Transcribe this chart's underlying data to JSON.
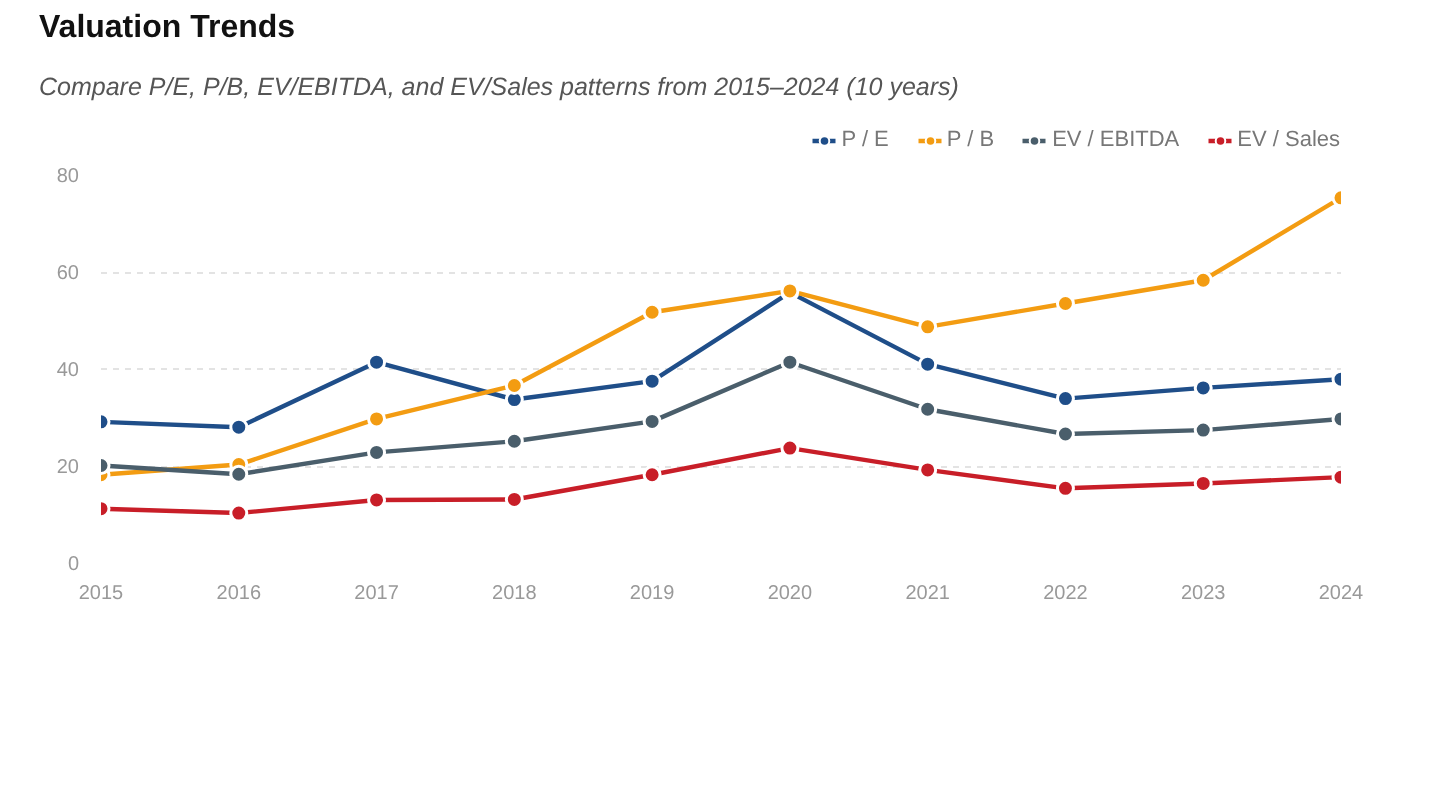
{
  "chart_data": {
    "type": "line",
    "title": "Valuation Trends",
    "subtitle": "Compare P/E, P/B, EV/EBITDA, and EV/Sales patterns from 2015–2024 (10 years)",
    "x": [
      2015,
      2016,
      2017,
      2018,
      2019,
      2020,
      2021,
      2022,
      2023,
      2024
    ],
    "xlim": [
      2015,
      2024
    ],
    "xticks": [
      2015,
      2016,
      2017,
      2018,
      2019,
      2020,
      2021,
      2022,
      2023,
      2024
    ],
    "ylim": [
      0,
      80
    ],
    "yticks": [
      0,
      20,
      40,
      60,
      80
    ],
    "grid": "y",
    "legend": "top right",
    "marker": "circle",
    "line_style": "solid",
    "series": [
      {
        "name": "P / E",
        "color": "#1f4e89",
        "values": [
          29.1,
          28,
          41.4,
          33.7,
          37.5,
          55.8,
          41,
          33.9,
          36.1,
          37.9
        ]
      },
      {
        "name": "P / B",
        "color": "#f39c12",
        "values": [
          18.2,
          20.3,
          29.7,
          36.6,
          51.7,
          56.1,
          48.7,
          53.5,
          58.3,
          75.3
        ]
      },
      {
        "name": "EV / EBITDA",
        "color": "#4a5e6b",
        "values": [
          20.1,
          18.3,
          22.8,
          25.1,
          29.2,
          41.4,
          31.7,
          26.6,
          27.4,
          29.7
        ]
      },
      {
        "name": "EV / Sales",
        "color": "#c81e28",
        "values": [
          11.2,
          10.3,
          13,
          13.1,
          18.2,
          23.7,
          19.2,
          15.4,
          16.4,
          17.7
        ]
      }
    ]
  }
}
